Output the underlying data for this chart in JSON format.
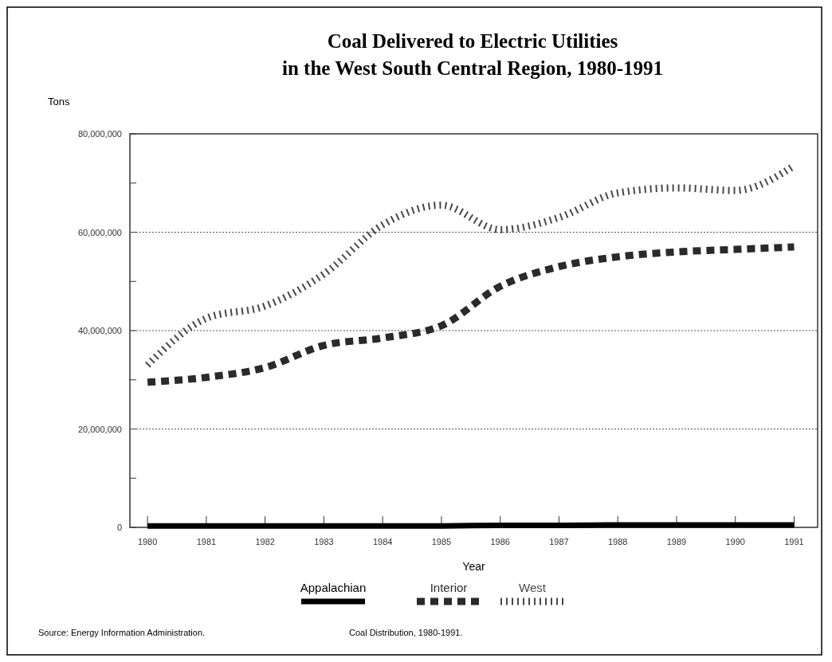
{
  "chart_data": {
    "type": "line",
    "title": "Coal Delivered to Electric Utilities\nin the West South Central Region, 1980-1991",
    "ylabel": "Tons",
    "xlabel": "Year",
    "x": [
      1980,
      1981,
      1982,
      1983,
      1984,
      1985,
      1986,
      1987,
      1988,
      1989,
      1990,
      1991
    ],
    "xlim": [
      1979.7,
      1991.4
    ],
    "xticks": [
      1980,
      1981,
      1982,
      1983,
      1984,
      1985,
      1986,
      1987,
      1988,
      1989,
      1990,
      1991
    ],
    "ylim": [
      0,
      80000000
    ],
    "yticks": [
      0,
      {
        "value": 10000000,
        "label": null
      },
      {
        "value": 20000000,
        "label": "20,000,000"
      },
      {
        "value": 30000000,
        "label": null
      },
      {
        "value": 40000000,
        "label": "40,000,000"
      },
      {
        "value": 50000000,
        "label": null
      },
      {
        "value": 60000000,
        "label": "60,000,000"
      },
      {
        "value": 70000000,
        "label": null
      },
      {
        "value": 80000000,
        "label": "80,000,000"
      }
    ],
    "grid": "y",
    "legend": "bottom",
    "marker": "none",
    "series": [
      {
        "name": "Appalachian",
        "color": "#000000",
        "line_style": "solid",
        "values": [
          300000,
          300000,
          300000,
          300000,
          300000,
          300000,
          400000,
          400000,
          500000,
          500000,
          500000,
          500000
        ]
      },
      {
        "name": "Interior",
        "color": "#2a2a2a",
        "line_style": "dashed",
        "values": [
          29500000,
          30500000,
          32500000,
          37000000,
          38500000,
          41000000,
          49000000,
          53000000,
          55000000,
          56000000,
          56500000,
          57000000
        ]
      },
      {
        "name": "West",
        "color": "#484848",
        "line_style": "dotted",
        "values": [
          33000000,
          42500000,
          45000000,
          51500000,
          61500000,
          65500000,
          60500000,
          63000000,
          68000000,
          69000000,
          68500000,
          73500000
        ]
      }
    ],
    "annotations": [
      "Source:  Energy Information Administration.",
      "Coal Distribution, 1980-1991."
    ]
  }
}
